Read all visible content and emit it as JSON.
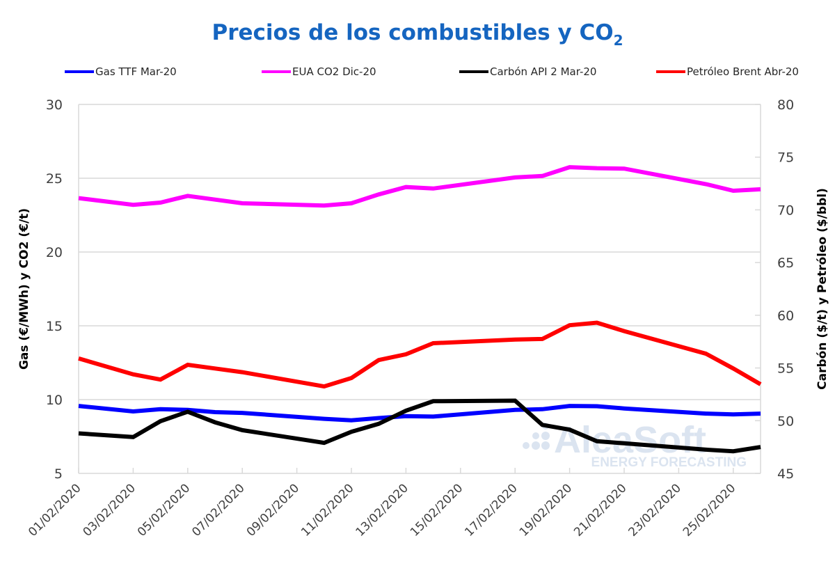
{
  "chart_data": {
    "type": "line",
    "title": "Precios de los combustibles y CO",
    "title_subscript": "2",
    "xlabel": "",
    "ylabel": "Gas (€/MWh) y CO2 (€/t)",
    "y2label": "Carbón ($/t) y Petróleo ($/bbl)",
    "ylim": [
      5,
      30
    ],
    "y2lim": [
      45,
      80
    ],
    "yticks": [
      5,
      10,
      15,
      20,
      25,
      30
    ],
    "y2ticks": [
      45,
      50,
      55,
      60,
      65,
      70,
      75,
      80
    ],
    "grid": true,
    "legend_position": "top",
    "x_day_range": [
      1,
      26
    ],
    "xtick_days": [
      1,
      3,
      5,
      7,
      9,
      11,
      13,
      15,
      17,
      19,
      21,
      23,
      25
    ],
    "xtick_labels": [
      "01/02/2020",
      "03/02/2020",
      "05/02/2020",
      "07/02/2020",
      "09/02/2020",
      "11/02/2020",
      "13/02/2020",
      "15/02/2020",
      "17/02/2020",
      "19/02/2020",
      "21/02/2020",
      "23/02/2020",
      "25/02/2020"
    ],
    "x": [
      1,
      3,
      4,
      5,
      6,
      7,
      10,
      11,
      12,
      13,
      14,
      17,
      18,
      19,
      20,
      21,
      24,
      25,
      26
    ],
    "series": [
      {
        "name": "Gas TTF Mar-20",
        "axis": "left",
        "color": "#0000ff",
        "values": [
          9.57,
          9.2,
          9.35,
          9.3,
          9.15,
          9.1,
          8.7,
          8.6,
          8.75,
          8.88,
          8.85,
          9.3,
          9.35,
          9.57,
          9.55,
          9.4,
          9.05,
          9.0,
          9.05
        ]
      },
      {
        "name": "EUA CO2 Dic-20",
        "axis": "left",
        "color": "#ff00ff",
        "values": [
          23.65,
          23.2,
          23.35,
          23.8,
          23.55,
          23.3,
          23.15,
          23.3,
          23.9,
          24.4,
          24.3,
          25.05,
          25.15,
          25.75,
          25.68,
          25.65,
          24.6,
          24.15,
          24.25
        ]
      },
      {
        "name": "Carbón API 2 Mar-20",
        "axis": "right",
        "color": "#000000",
        "values": [
          48.8,
          48.45,
          49.95,
          50.85,
          49.85,
          49.1,
          47.9,
          48.95,
          49.7,
          50.95,
          51.85,
          51.9,
          49.6,
          49.15,
          48.05,
          47.85,
          47.25,
          47.1,
          47.5
        ]
      },
      {
        "name": "Petróleo Brent Abr-20",
        "axis": "right",
        "color": "#ff0000",
        "values": [
          55.9,
          54.4,
          53.9,
          55.3,
          54.95,
          54.6,
          53.25,
          54.05,
          55.75,
          56.3,
          57.35,
          57.7,
          57.75,
          59.05,
          59.3,
          58.5,
          56.35,
          54.95,
          53.45
        ]
      }
    ]
  },
  "watermark": {
    "brand": "AleaSoft",
    "tagline": "ENERGY FORECASTING"
  }
}
